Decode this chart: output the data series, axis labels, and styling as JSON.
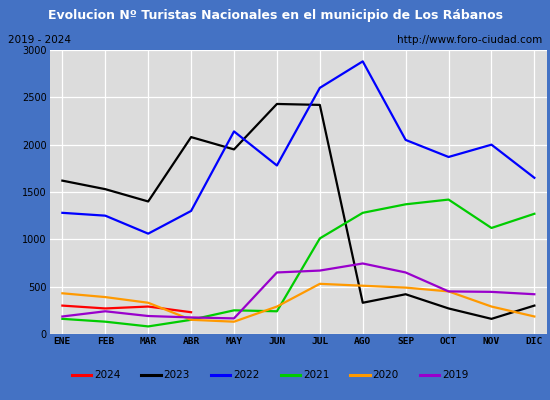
{
  "title": "Evolucion Nº Turistas Nacionales en el municipio de Los Rábanos",
  "subtitle_left": "2019 - 2024",
  "subtitle_right": "http://www.foro-ciudad.com",
  "months": [
    "ENE",
    "FEB",
    "MAR",
    "ABR",
    "MAY",
    "JUN",
    "JUL",
    "AGO",
    "SEP",
    "OCT",
    "NOV",
    "DIC"
  ],
  "series": {
    "2024": [
      300,
      270,
      290,
      230,
      null,
      null,
      null,
      null,
      null,
      null,
      null,
      null
    ],
    "2023": [
      1620,
      1530,
      1400,
      2080,
      1950,
      2430,
      2420,
      330,
      420,
      270,
      160,
      300
    ],
    "2022": [
      1280,
      1250,
      1060,
      1300,
      2140,
      1780,
      2600,
      2880,
      2050,
      1870,
      2000,
      1650
    ],
    "2021": [
      160,
      130,
      80,
      150,
      250,
      240,
      1010,
      1280,
      1370,
      1420,
      1120,
      1270
    ],
    "2020": [
      430,
      390,
      330,
      150,
      130,
      290,
      530,
      510,
      490,
      450,
      290,
      185
    ],
    "2019": [
      185,
      240,
      190,
      175,
      165,
      650,
      670,
      745,
      650,
      450,
      445,
      420
    ]
  },
  "colors": {
    "2024": "#ff0000",
    "2023": "#000000",
    "2022": "#0000ff",
    "2021": "#00cc00",
    "2020": "#ff9900",
    "2019": "#9900cc"
  },
  "ylim": [
    0,
    3000
  ],
  "yticks": [
    0,
    500,
    1000,
    1500,
    2000,
    2500,
    3000
  ],
  "title_bg_color": "#4472c4",
  "title_text_color": "#ffffff",
  "plot_bg_color": "#dcdcdc",
  "grid_color": "#ffffff",
  "outer_border_color": "#4472c4",
  "subtitle_border_color": "#888888",
  "legend_border_color": "#555555",
  "fig_bg_color": "#4472c4"
}
